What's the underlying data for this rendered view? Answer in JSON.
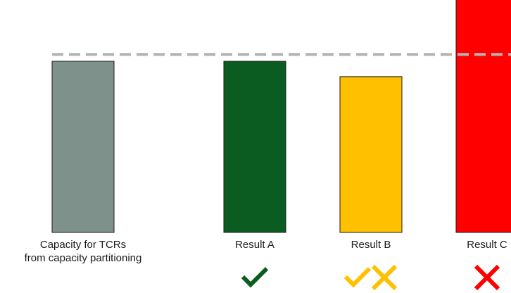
{
  "chart_data": {
    "type": "bar",
    "title": "",
    "xlabel": "",
    "ylabel": "",
    "categories": [
      [
        "Capacity for TCRs",
        "from capacity partitioning"
      ],
      [
        "Result A"
      ],
      [
        "Result B"
      ],
      [
        "Result C"
      ]
    ],
    "values": [
      100,
      100,
      91,
      139
    ],
    "bar_colors": [
      "#7f918b",
      "#0b5c20",
      "#ffc000",
      "#ff0000"
    ],
    "reference_line": {
      "value": 104,
      "style": "dashed",
      "color": "#b3b3b3"
    },
    "status_marks": [
      [],
      [
        {
          "icon": "check-icon",
          "color": "#0b5c20"
        }
      ],
      [
        {
          "icon": "check-icon",
          "color": "#ffc000"
        },
        {
          "icon": "cross-icon",
          "color": "#ffc000"
        }
      ],
      [
        {
          "icon": "cross-icon",
          "color": "#ff0000"
        }
      ]
    ],
    "grid": false,
    "legend": "none"
  }
}
